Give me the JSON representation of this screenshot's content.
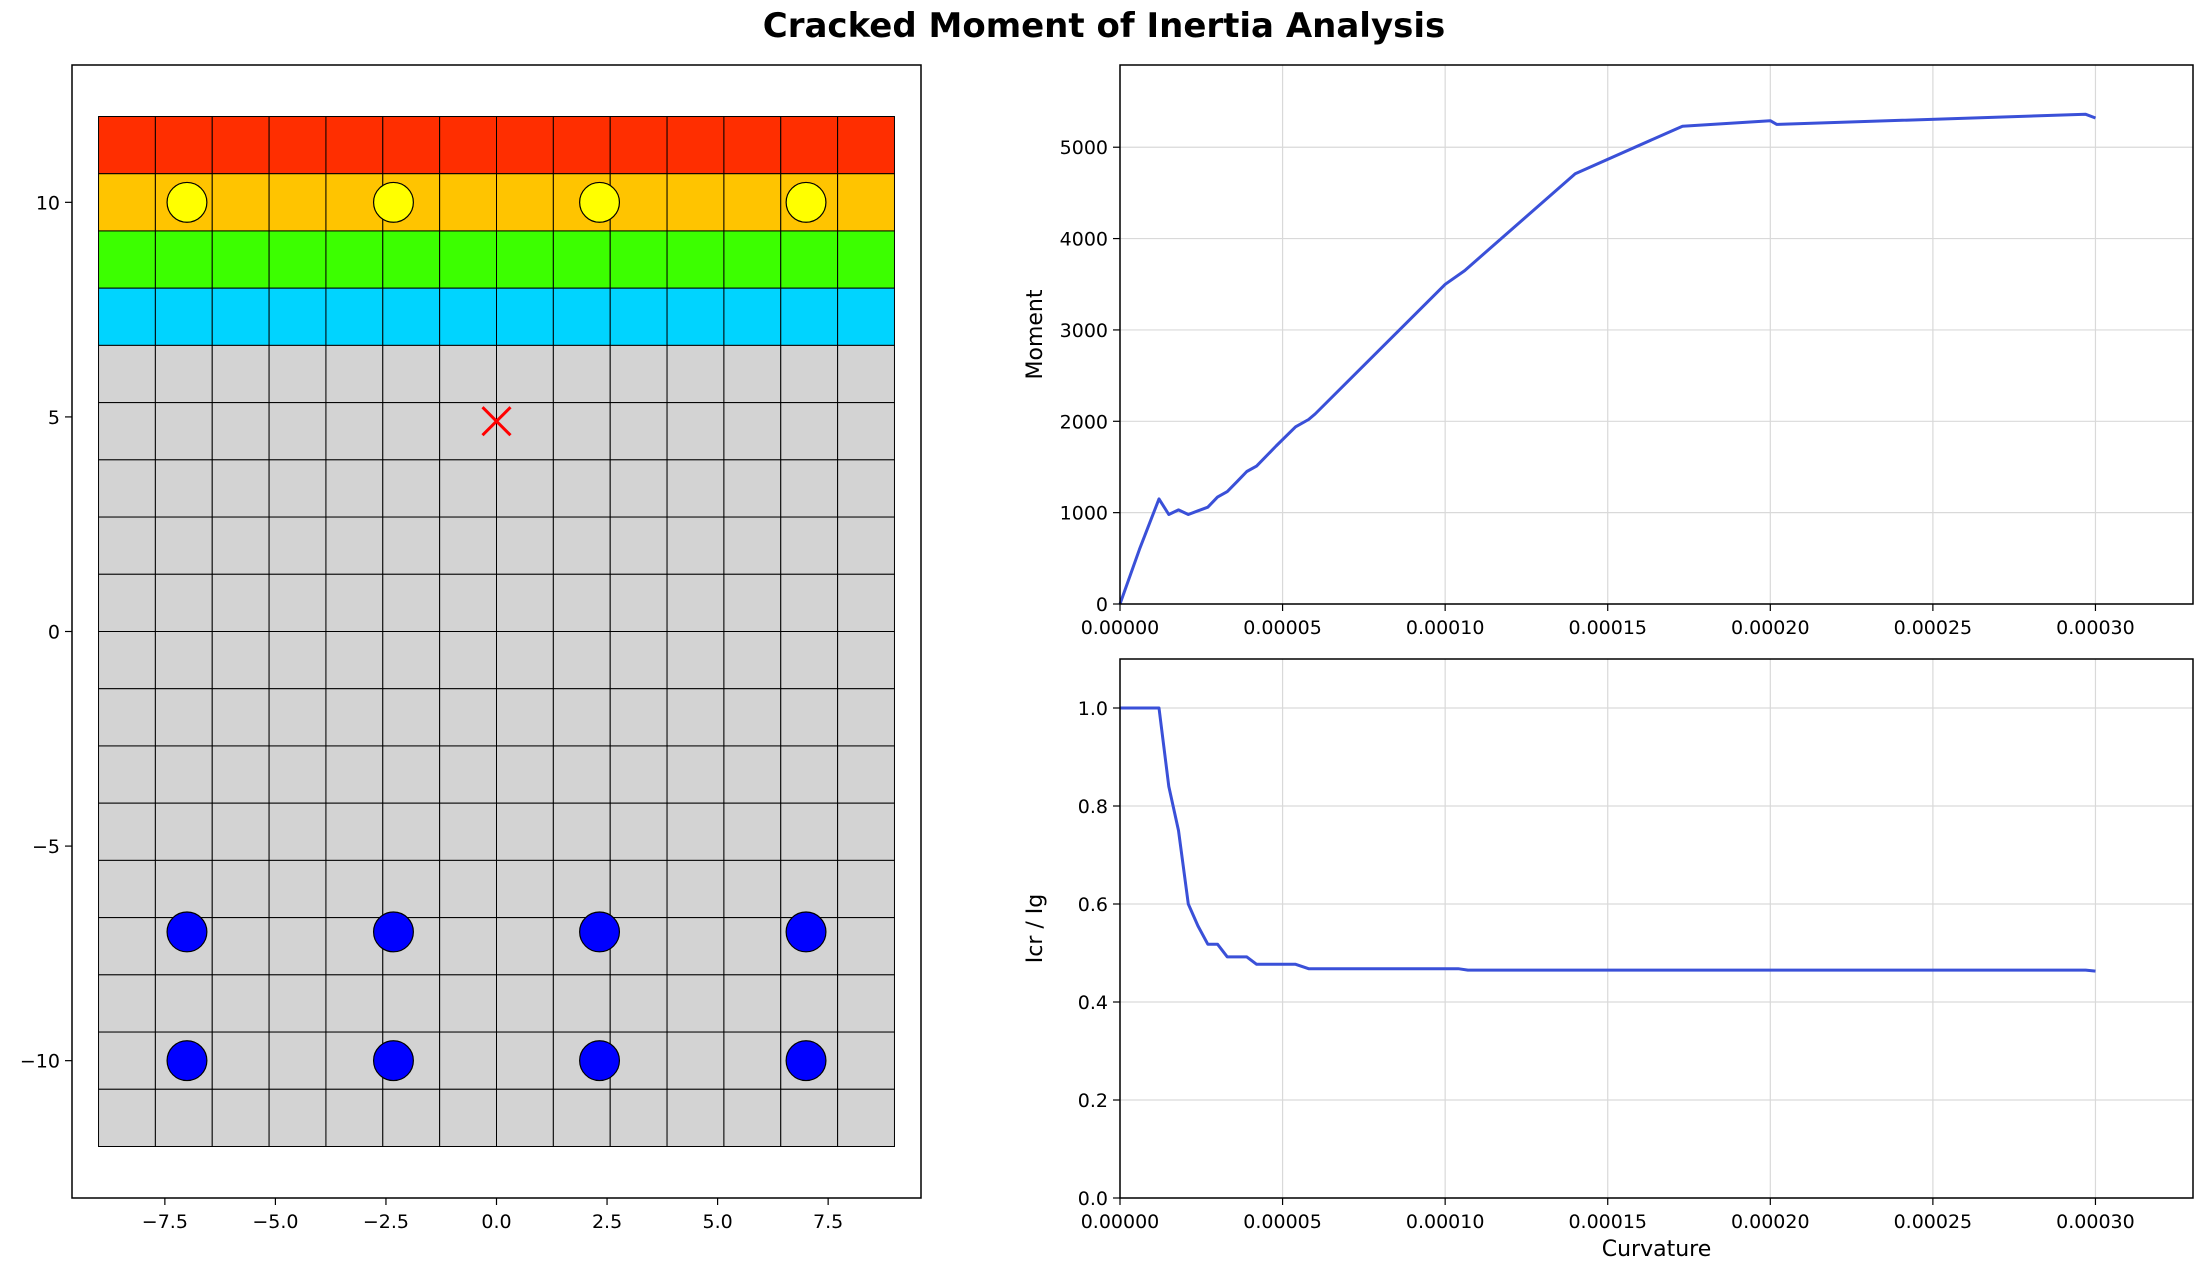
{
  "title": "Cracked Moment of Inertia Analysis",
  "colors": {
    "curve": "#3a50d8",
    "grid": "#d9d9d9",
    "concrete": "#d3d3d3",
    "layers": [
      "#ff2e00",
      "#ffc400",
      "#3cff00",
      "#00d4ff"
    ],
    "bar_top": "#ffff00",
    "bar_bottom": "#0000ff",
    "centroid": "#ff0000"
  },
  "chart_data": [
    {
      "type": "section_mesh",
      "xlim": [
        -9.6,
        9.6
      ],
      "ylim": [
        -13.2,
        13.2
      ],
      "xticks": [
        -7.5,
        -5.0,
        -2.5,
        0.0,
        2.5,
        5.0,
        7.5
      ],
      "xtick_labels": [
        "−7.5",
        "−5.0",
        "−2.5",
        "0.0",
        "2.5",
        "5.0",
        "7.5"
      ],
      "yticks": [
        -10,
        -5,
        0,
        5,
        10
      ],
      "ytick_labels": [
        "−10",
        "−5",
        "0",
        "5",
        "10"
      ],
      "mesh": {
        "x_min": -9,
        "x_max": 9,
        "y_min": -12,
        "y_max": 12,
        "nx": 14,
        "ny": 18
      },
      "colored_rows_from_top": 4,
      "rebar_top": [
        [
          -7,
          10
        ],
        [
          -2.33,
          10
        ],
        [
          2.33,
          10
        ],
        [
          7,
          10
        ]
      ],
      "rebar_bottom": [
        [
          -7,
          -7
        ],
        [
          -2.33,
          -7
        ],
        [
          2.33,
          -7
        ],
        [
          7,
          -7
        ],
        [
          -7,
          -10
        ],
        [
          -2.33,
          -10
        ],
        [
          2.33,
          -10
        ],
        [
          7,
          -10
        ]
      ],
      "bar_radius": 0.45,
      "centroid": [
        0,
        4.9
      ]
    },
    {
      "type": "line",
      "xlabel": "",
      "ylabel": "Moment",
      "xlim": [
        0,
        0.00033
      ],
      "ylim": [
        0,
        5900
      ],
      "xticks": [
        0,
        5e-05,
        0.0001,
        0.00015,
        0.0002,
        0.00025,
        0.0003
      ],
      "xtick_labels": [
        "0.00000",
        "0.00005",
        "0.00010",
        "0.00015",
        "0.00020",
        "0.00025",
        "0.00030"
      ],
      "yticks": [
        0,
        1000,
        2000,
        3000,
        4000,
        5000
      ],
      "ytick_labels": [
        "0",
        "1000",
        "2000",
        "3000",
        "4000",
        "5000"
      ],
      "series": [
        {
          "name": "Moment",
          "x": [
            0,
            6e-06,
            1.2e-05,
            1.5e-05,
            1.8e-05,
            2.1e-05,
            2.4e-05,
            2.7e-05,
            3e-05,
            3.3e-05,
            3.6e-05,
            3.9e-05,
            4.2e-05,
            4.8e-05,
            5.4e-05,
            5.8e-05,
            6e-05,
            0.0001,
            0.000106,
            0.00014,
            0.000173,
            0.0002,
            0.000202,
            0.000297,
            0.0003
          ],
          "y": [
            0,
            600,
            1150,
            980,
            1030,
            980,
            1020,
            1060,
            1170,
            1230,
            1340,
            1450,
            1510,
            1730,
            1940,
            2020,
            2080,
            3500,
            3650,
            4710,
            5230,
            5290,
            5250,
            5360,
            5320
          ]
        }
      ]
    },
    {
      "type": "line",
      "xlabel": "Curvature",
      "ylabel": "Icr / Ig",
      "xlim": [
        0,
        0.00033
      ],
      "ylim": [
        0,
        1.1
      ],
      "xticks": [
        0,
        5e-05,
        0.0001,
        0.00015,
        0.0002,
        0.00025,
        0.0003
      ],
      "xtick_labels": [
        "0.00000",
        "0.00005",
        "0.00010",
        "0.00015",
        "0.00020",
        "0.00025",
        "0.00030"
      ],
      "yticks": [
        0,
        0.2,
        0.4,
        0.6,
        0.8,
        1.0
      ],
      "ytick_labels": [
        "0.0",
        "0.2",
        "0.4",
        "0.6",
        "0.8",
        "1.0"
      ],
      "series": [
        {
          "name": "Icr / Ig",
          "x": [
            0,
            6e-06,
            1.2e-05,
            1.5e-05,
            1.8e-05,
            2.1e-05,
            2.4e-05,
            2.7e-05,
            3e-05,
            3.3e-05,
            3.6e-05,
            3.9e-05,
            4.2e-05,
            5.4e-05,
            5.8e-05,
            0.000104,
            0.000107,
            0.0002,
            0.000297,
            0.0003
          ],
          "y": [
            1.0,
            1.0,
            1.0,
            0.84,
            0.75,
            0.6,
            0.555,
            0.518,
            0.518,
            0.492,
            0.492,
            0.492,
            0.477,
            0.477,
            0.468,
            0.468,
            0.465,
            0.465,
            0.465,
            0.463
          ]
        }
      ]
    }
  ]
}
